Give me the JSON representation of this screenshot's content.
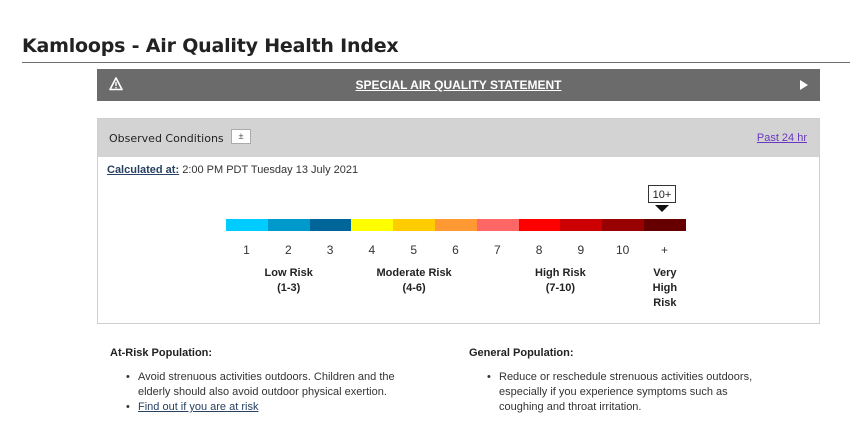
{
  "header": {
    "title": "Kamloops - Air Quality Health Index"
  },
  "statement": {
    "label": "SPECIAL AIR QUALITY STATEMENT"
  },
  "observed": {
    "title": "Observed Conditions",
    "toggle_symbol": "±",
    "past_link": "Past 24 hr",
    "calculated_label": "Calculated at:",
    "calculated_value": "2:00 PM PDT Tuesday 13 July 2021",
    "current_value": "10+"
  },
  "scale": {
    "colors": [
      "#00ccff",
      "#0099cc",
      "#006699",
      "#ffff00",
      "#ffcc00",
      "#ff9933",
      "#ff6666",
      "#ff0000",
      "#cc0000",
      "#990000",
      "#660000"
    ],
    "numbers": [
      "1",
      "2",
      "3",
      "4",
      "5",
      "6",
      "7",
      "8",
      "9",
      "10",
      "+"
    ],
    "risks": [
      {
        "line1": "Low Risk",
        "line2": "(1-3)"
      },
      {
        "line1": "Moderate Risk",
        "line2": "(4-6)"
      },
      {
        "line1": "High Risk",
        "line2": "(7-10)"
      },
      {
        "line1": "Very",
        "line2": "High",
        "line3": "Risk"
      }
    ]
  },
  "at_risk": {
    "title": "At-Risk Population:",
    "bullet1_line1": "Avoid strenuous activities outdoors. Children and the",
    "bullet1_line2": "elderly should also avoid outdoor physical exertion.",
    "link": "Find out if you are at risk"
  },
  "general": {
    "title": "General Population:",
    "line1": "Reduce or reschedule strenuous activities outdoors,",
    "line2": "especially if you experience symptoms such as",
    "line3": "coughing and throat irritation."
  }
}
